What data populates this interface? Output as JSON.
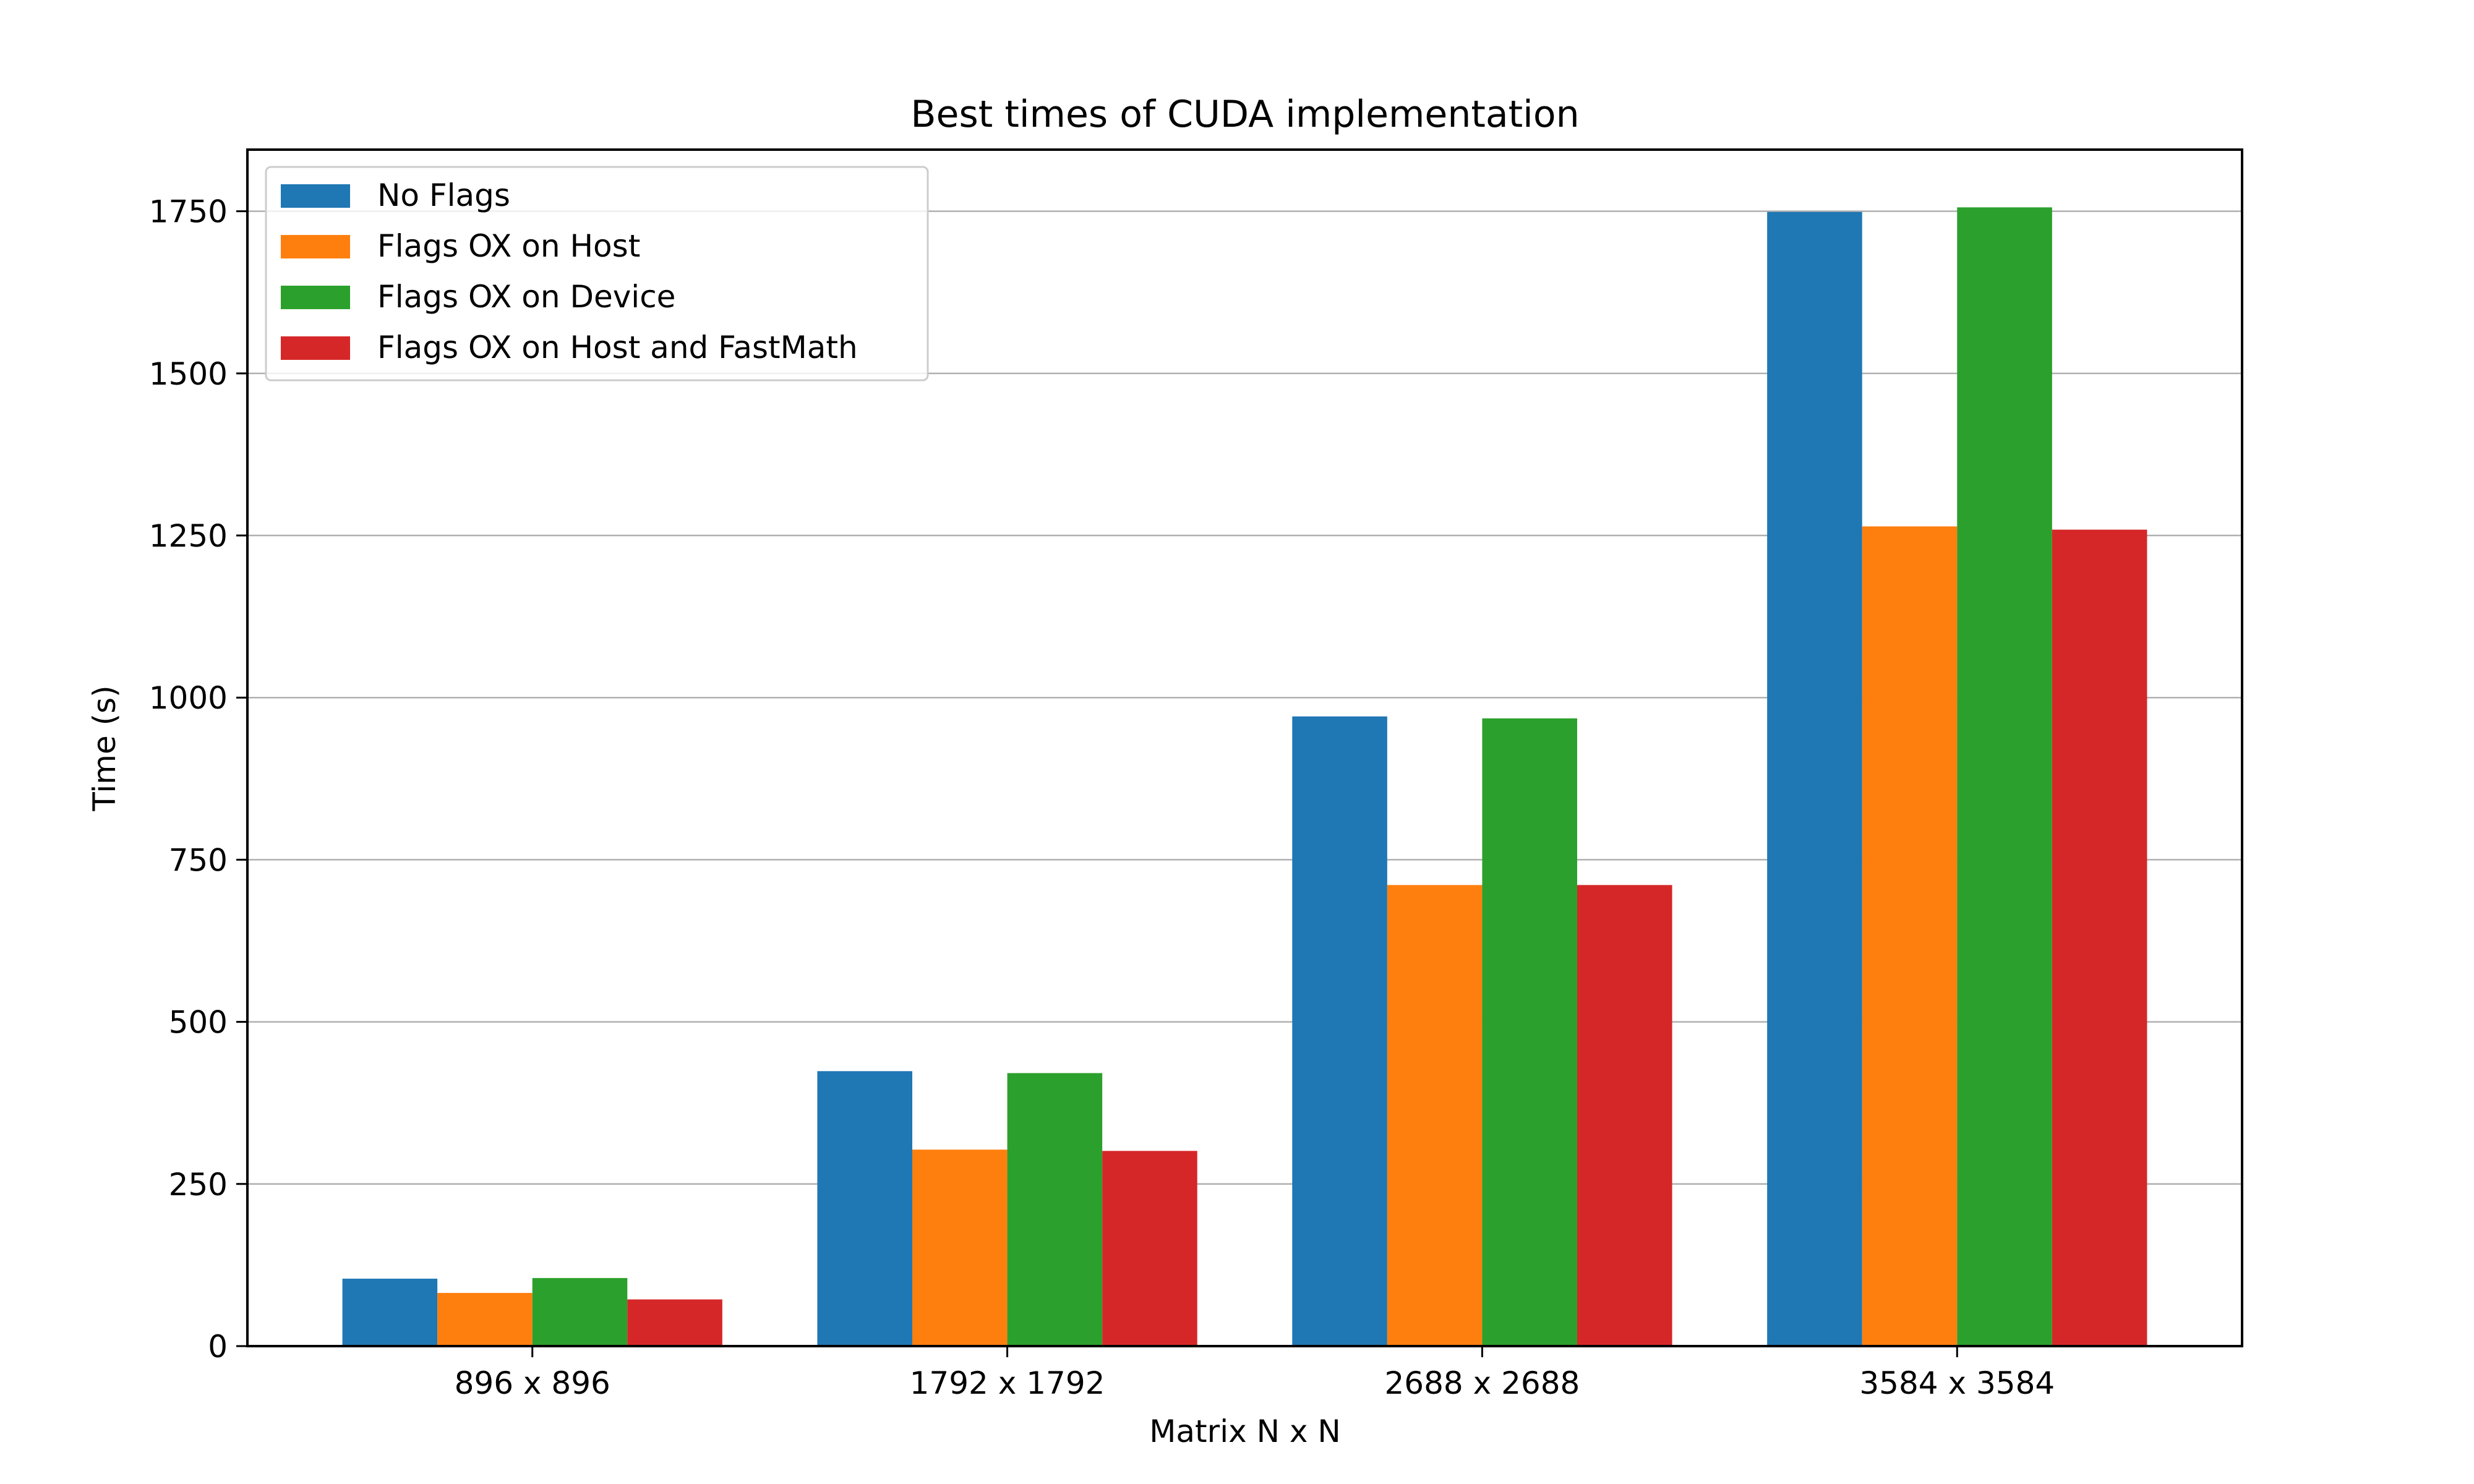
{
  "chart_data": {
    "type": "bar",
    "title": "Best times of CUDA implementation",
    "xlabel": "Matrix N x N",
    "ylabel": "Time (s)",
    "categories": [
      "896 x 896",
      "1792 x 1792",
      "2688 x 2688",
      "3584 x 3584"
    ],
    "series": [
      {
        "name": "No Flags",
        "color": "#1f77b4",
        "values": [
          104,
          424,
          971,
          1749
        ]
      },
      {
        "name": "Flags OX on Host",
        "color": "#ff7f0e",
        "values": [
          82,
          303,
          711,
          1264
        ]
      },
      {
        "name": "Flags OX on Device",
        "color": "#2ca02c",
        "values": [
          105,
          421,
          968,
          1756
        ]
      },
      {
        "name": "Flags OX on Host and FastMath",
        "color": "#d62728",
        "values": [
          72,
          301,
          711,
          1259
        ]
      }
    ],
    "ylim": [
      0,
      1845
    ],
    "yticks": [
      0,
      250,
      500,
      750,
      1000,
      1250,
      1500,
      1750
    ],
    "grid": "horizontal",
    "legend_position": "top-left"
  }
}
